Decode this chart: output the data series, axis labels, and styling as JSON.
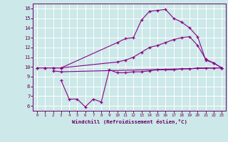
{
  "xlabel": "Windchill (Refroidissement éolien,°C)",
  "bg_color": "#cce8e8",
  "grid_color": "#ffffff",
  "line_color": "#880088",
  "tick_color": "#660066",
  "x_ticks": [
    0,
    1,
    2,
    3,
    4,
    5,
    6,
    7,
    8,
    9,
    10,
    11,
    12,
    13,
    14,
    15,
    16,
    17,
    18,
    19,
    20,
    21,
    22,
    23
  ],
  "y_ticks": [
    6,
    7,
    8,
    9,
    10,
    11,
    12,
    13,
    14,
    15,
    16
  ],
  "ylim": [
    5.5,
    16.5
  ],
  "xlim": [
    -0.5,
    23.5
  ],
  "series": [
    {
      "x": [
        0,
        1,
        2,
        3,
        10,
        11,
        12,
        13,
        14,
        15,
        16,
        17,
        18,
        19,
        20,
        21,
        22,
        23
      ],
      "y": [
        9.9,
        9.9,
        9.9,
        9.9,
        12.5,
        12.9,
        13.0,
        14.8,
        15.7,
        15.8,
        15.9,
        15.0,
        14.6,
        14.0,
        13.1,
        10.7,
        10.4,
        9.9
      ]
    },
    {
      "x": [
        0,
        1,
        2,
        3,
        10,
        11,
        12,
        13,
        14,
        15,
        16,
        17,
        18,
        19,
        20,
        21,
        22,
        23
      ],
      "y": [
        9.9,
        9.9,
        9.9,
        9.9,
        10.5,
        10.7,
        11.0,
        11.5,
        12.0,
        12.2,
        12.5,
        12.8,
        13.0,
        13.1,
        12.2,
        10.8,
        10.4,
        9.9
      ]
    },
    {
      "x": [
        2,
        3,
        23
      ],
      "y": [
        9.6,
        9.5,
        9.9
      ]
    },
    {
      "x": [
        3,
        4,
        5,
        6,
        7,
        8,
        9,
        10,
        11,
        12,
        13,
        14,
        15,
        16,
        17,
        18,
        19,
        20,
        21,
        22,
        23
      ],
      "y": [
        8.6,
        6.7,
        6.7,
        5.9,
        6.7,
        6.4,
        9.7,
        9.4,
        9.4,
        9.5,
        9.5,
        9.6,
        9.7,
        9.7,
        9.7,
        9.8,
        9.8,
        9.9,
        9.9,
        9.9,
        9.9
      ]
    }
  ]
}
